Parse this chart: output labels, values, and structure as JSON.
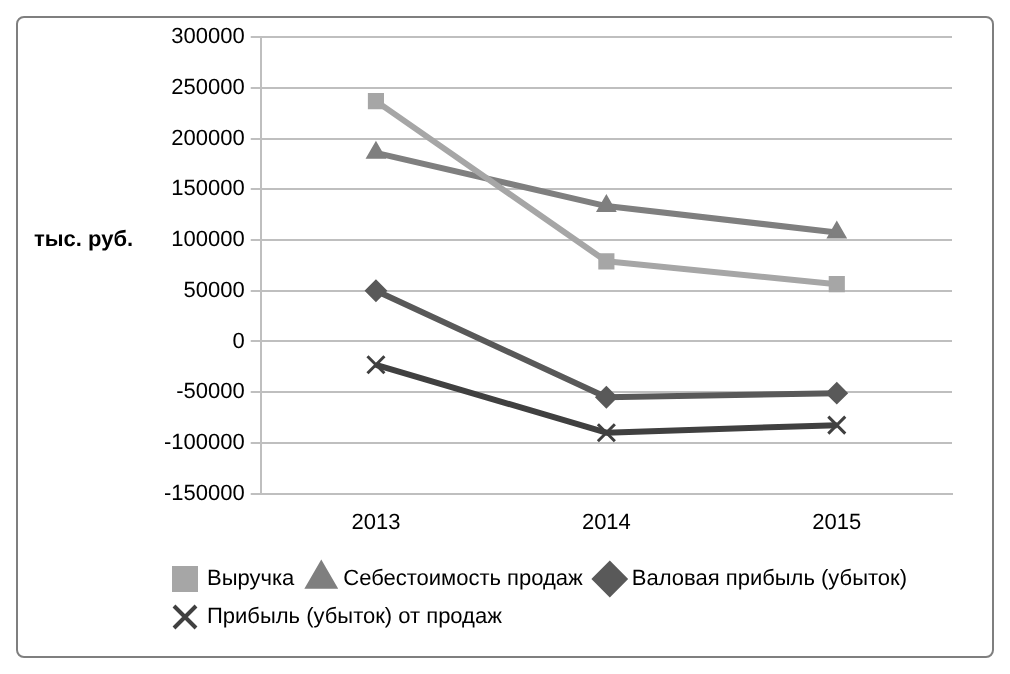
{
  "chart_data": {
    "type": "line",
    "ylabel": "тыс. руб.",
    "categories": [
      "2013",
      "2014",
      "2015"
    ],
    "series": [
      {
        "name": "Выручка",
        "color": "#a6a6a6",
        "marker": "square",
        "values": [
          237000,
          79000,
          56500
        ]
      },
      {
        "name": "Себестоимость продаж",
        "color": "#7f7f7f",
        "marker": "triangle",
        "values": [
          186000,
          133500,
          107500
        ]
      },
      {
        "name": "Валовая прибыль (убыток)",
        "color": "#595959",
        "marker": "diamond",
        "values": [
          50000,
          -55000,
          -51000
        ]
      },
      {
        "name": "Прибыль (убыток) от продаж",
        "color": "#404040",
        "marker": "cross",
        "values": [
          -23000,
          -90000,
          -82500
        ]
      }
    ],
    "ylim": [
      -150000,
      300000
    ],
    "yticks": [
      -150000,
      -100000,
      -50000,
      0,
      50000,
      100000,
      150000,
      200000,
      250000,
      300000
    ],
    "grid": "y",
    "legend": "bottom",
    "line_style": "solid"
  }
}
